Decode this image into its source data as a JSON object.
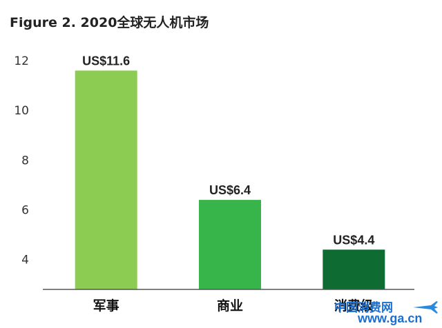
{
  "chart_data": {
    "type": "bar",
    "title": "Figure 2. 2020全球无人机市场",
    "categories": [
      "军事",
      "商业",
      "消费级"
    ],
    "values": [
      11.6,
      6.4,
      4.4
    ],
    "data_labels": [
      "US$11.6",
      "US$6.4",
      "US$4.4"
    ],
    "bar_colors": [
      "#8dcc52",
      "#38b54a",
      "#0e6b32"
    ],
    "yticks": [
      "4",
      "6",
      "8",
      "10",
      "12"
    ],
    "ylim": [
      2.8,
      12
    ],
    "grid": false,
    "legend": "none"
  },
  "watermark": {
    "line1": "中国消费网",
    "line2": "www.ga.cn"
  }
}
